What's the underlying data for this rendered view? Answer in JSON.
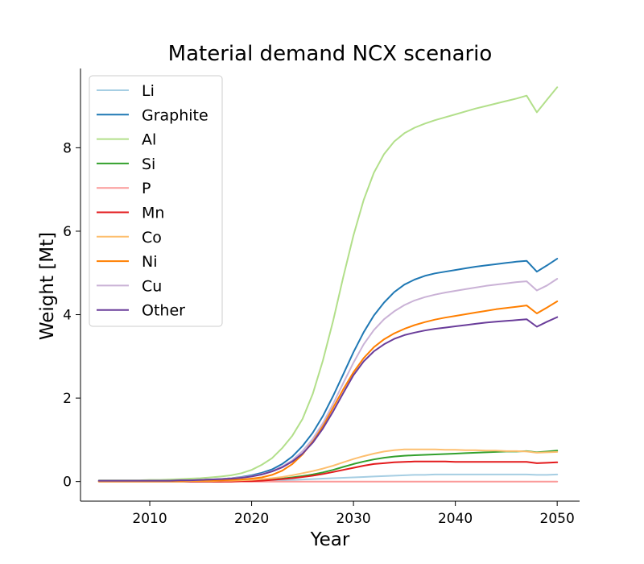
{
  "chart_data": {
    "type": "line",
    "title": "Material demand NCX scenario",
    "xlabel": "Year",
    "ylabel": "Weight [Mt]",
    "xlim": [
      2003.2,
      2052.2
    ],
    "ylim": [
      -0.47,
      9.9
    ],
    "xticks": [
      2010,
      2020,
      2030,
      2040,
      2050
    ],
    "yticks": [
      0,
      2,
      4,
      6,
      8
    ],
    "grid": false,
    "legend_position": "upper-left",
    "x": [
      2005,
      2006,
      2007,
      2008,
      2009,
      2010,
      2011,
      2012,
      2013,
      2014,
      2015,
      2016,
      2017,
      2018,
      2019,
      2020,
      2021,
      2022,
      2023,
      2024,
      2025,
      2026,
      2027,
      2028,
      2029,
      2030,
      2031,
      2032,
      2033,
      2034,
      2035,
      2036,
      2037,
      2038,
      2039,
      2040,
      2041,
      2042,
      2043,
      2044,
      2045,
      2046,
      2047,
      2048,
      2049,
      2050
    ],
    "series": [
      {
        "name": "Li",
        "color": "#a6cee3",
        "values": [
          0.01,
          0.01,
          0.01,
          0.01,
          0.01,
          0.01,
          0.01,
          0.01,
          0.01,
          0.01,
          0.01,
          0.01,
          0.01,
          0.01,
          0.01,
          0.01,
          0.02,
          0.02,
          0.03,
          0.04,
          0.05,
          0.06,
          0.07,
          0.08,
          0.09,
          0.1,
          0.11,
          0.12,
          0.13,
          0.14,
          0.15,
          0.16,
          0.16,
          0.17,
          0.17,
          0.17,
          0.17,
          0.17,
          0.17,
          0.17,
          0.17,
          0.17,
          0.17,
          0.16,
          0.16,
          0.17
        ]
      },
      {
        "name": "Graphite",
        "color": "#1f78b4",
        "values": [
          0.02,
          0.02,
          0.02,
          0.02,
          0.02,
          0.02,
          0.02,
          0.03,
          0.03,
          0.03,
          0.04,
          0.05,
          0.06,
          0.08,
          0.11,
          0.15,
          0.21,
          0.29,
          0.42,
          0.6,
          0.85,
          1.17,
          1.57,
          2.05,
          2.57,
          3.1,
          3.58,
          3.98,
          4.29,
          4.54,
          4.72,
          4.84,
          4.93,
          4.99,
          5.03,
          5.07,
          5.11,
          5.15,
          5.18,
          5.21,
          5.24,
          5.27,
          5.29,
          5.03,
          5.18,
          5.34
        ]
      },
      {
        "name": "Al",
        "color": "#b2df8a",
        "values": [
          0.03,
          0.03,
          0.03,
          0.03,
          0.03,
          0.04,
          0.04,
          0.05,
          0.06,
          0.07,
          0.08,
          0.1,
          0.12,
          0.15,
          0.2,
          0.28,
          0.4,
          0.56,
          0.8,
          1.1,
          1.5,
          2.1,
          2.9,
          3.85,
          4.9,
          5.9,
          6.75,
          7.4,
          7.85,
          8.15,
          8.35,
          8.48,
          8.58,
          8.66,
          8.73,
          8.8,
          8.87,
          8.94,
          9.0,
          9.06,
          9.12,
          9.18,
          9.25,
          8.85,
          9.15,
          9.45
        ]
      },
      {
        "name": "Si",
        "color": "#33a02c",
        "values": [
          0.0,
          0.0,
          0.0,
          0.0,
          0.0,
          0.0,
          0.0,
          0.0,
          0.0,
          0.0,
          0.0,
          0.0,
          0.0,
          0.01,
          0.01,
          0.02,
          0.03,
          0.05,
          0.07,
          0.1,
          0.13,
          0.17,
          0.22,
          0.28,
          0.35,
          0.42,
          0.48,
          0.53,
          0.57,
          0.6,
          0.62,
          0.63,
          0.64,
          0.65,
          0.66,
          0.67,
          0.68,
          0.69,
          0.7,
          0.71,
          0.72,
          0.72,
          0.73,
          0.7,
          0.72,
          0.74
        ]
      },
      {
        "name": "P",
        "color": "#fb9a99",
        "values": [
          0.0,
          0.0,
          0.0,
          0.0,
          0.0,
          0.0,
          0.0,
          0.0,
          0.0,
          0.0,
          0.0,
          0.0,
          0.0,
          0.0,
          0.0,
          0.0,
          0.0,
          0.0,
          0.0,
          0.0,
          0.0,
          0.0,
          0.0,
          0.0,
          0.0,
          0.0,
          0.0,
          0.0,
          0.0,
          0.0,
          0.0,
          0.0,
          0.0,
          0.0,
          0.0,
          0.0,
          0.0,
          0.0,
          0.0,
          0.0,
          0.0,
          0.0,
          0.0,
          0.0,
          0.0,
          0.0
        ]
      },
      {
        "name": "Mn",
        "color": "#e31a1c",
        "values": [
          0.0,
          0.0,
          0.0,
          0.0,
          0.0,
          0.0,
          0.0,
          0.0,
          0.0,
          0.0,
          0.0,
          0.0,
          0.0,
          0.0,
          0.01,
          0.01,
          0.02,
          0.04,
          0.06,
          0.08,
          0.11,
          0.14,
          0.18,
          0.23,
          0.28,
          0.33,
          0.38,
          0.42,
          0.44,
          0.46,
          0.47,
          0.48,
          0.48,
          0.48,
          0.48,
          0.47,
          0.47,
          0.47,
          0.47,
          0.47,
          0.47,
          0.47,
          0.47,
          0.44,
          0.45,
          0.46
        ]
      },
      {
        "name": "Co",
        "color": "#fdbf6f",
        "values": [
          0.0,
          0.0,
          0.0,
          0.0,
          0.0,
          0.0,
          0.0,
          0.0,
          0.0,
          0.01,
          0.01,
          0.01,
          0.02,
          0.02,
          0.03,
          0.04,
          0.06,
          0.08,
          0.11,
          0.15,
          0.2,
          0.25,
          0.31,
          0.38,
          0.46,
          0.54,
          0.61,
          0.67,
          0.72,
          0.75,
          0.77,
          0.77,
          0.77,
          0.77,
          0.76,
          0.76,
          0.75,
          0.75,
          0.74,
          0.74,
          0.73,
          0.73,
          0.72,
          0.69,
          0.7,
          0.71
        ]
      },
      {
        "name": "Ni",
        "color": "#ff7f00",
        "values": [
          0.01,
          0.01,
          0.01,
          0.01,
          0.01,
          0.01,
          0.01,
          0.01,
          0.01,
          0.02,
          0.02,
          0.02,
          0.03,
          0.04,
          0.05,
          0.07,
          0.1,
          0.16,
          0.26,
          0.42,
          0.65,
          0.96,
          1.33,
          1.77,
          2.21,
          2.62,
          2.96,
          3.22,
          3.41,
          3.55,
          3.66,
          3.75,
          3.82,
          3.88,
          3.93,
          3.97,
          4.01,
          4.05,
          4.09,
          4.13,
          4.16,
          4.19,
          4.22,
          4.03,
          4.17,
          4.32
        ]
      },
      {
        "name": "Cu",
        "color": "#cab2d6",
        "values": [
          0.02,
          0.02,
          0.02,
          0.02,
          0.02,
          0.02,
          0.02,
          0.02,
          0.03,
          0.03,
          0.04,
          0.05,
          0.06,
          0.08,
          0.1,
          0.13,
          0.18,
          0.25,
          0.36,
          0.51,
          0.73,
          1.02,
          1.4,
          1.86,
          2.36,
          2.85,
          3.29,
          3.63,
          3.89,
          4.08,
          4.23,
          4.34,
          4.42,
          4.48,
          4.53,
          4.57,
          4.61,
          4.65,
          4.69,
          4.72,
          4.75,
          4.78,
          4.8,
          4.58,
          4.7,
          4.86
        ]
      },
      {
        "name": "Other",
        "color": "#6a3d9a",
        "values": [
          0.02,
          0.02,
          0.02,
          0.02,
          0.02,
          0.02,
          0.02,
          0.02,
          0.03,
          0.03,
          0.04,
          0.05,
          0.06,
          0.07,
          0.09,
          0.12,
          0.17,
          0.24,
          0.34,
          0.48,
          0.67,
          0.93,
          1.27,
          1.68,
          2.12,
          2.55,
          2.88,
          3.12,
          3.29,
          3.42,
          3.51,
          3.57,
          3.62,
          3.66,
          3.69,
          3.72,
          3.75,
          3.78,
          3.81,
          3.83,
          3.85,
          3.87,
          3.89,
          3.71,
          3.83,
          3.94
        ]
      }
    ]
  }
}
